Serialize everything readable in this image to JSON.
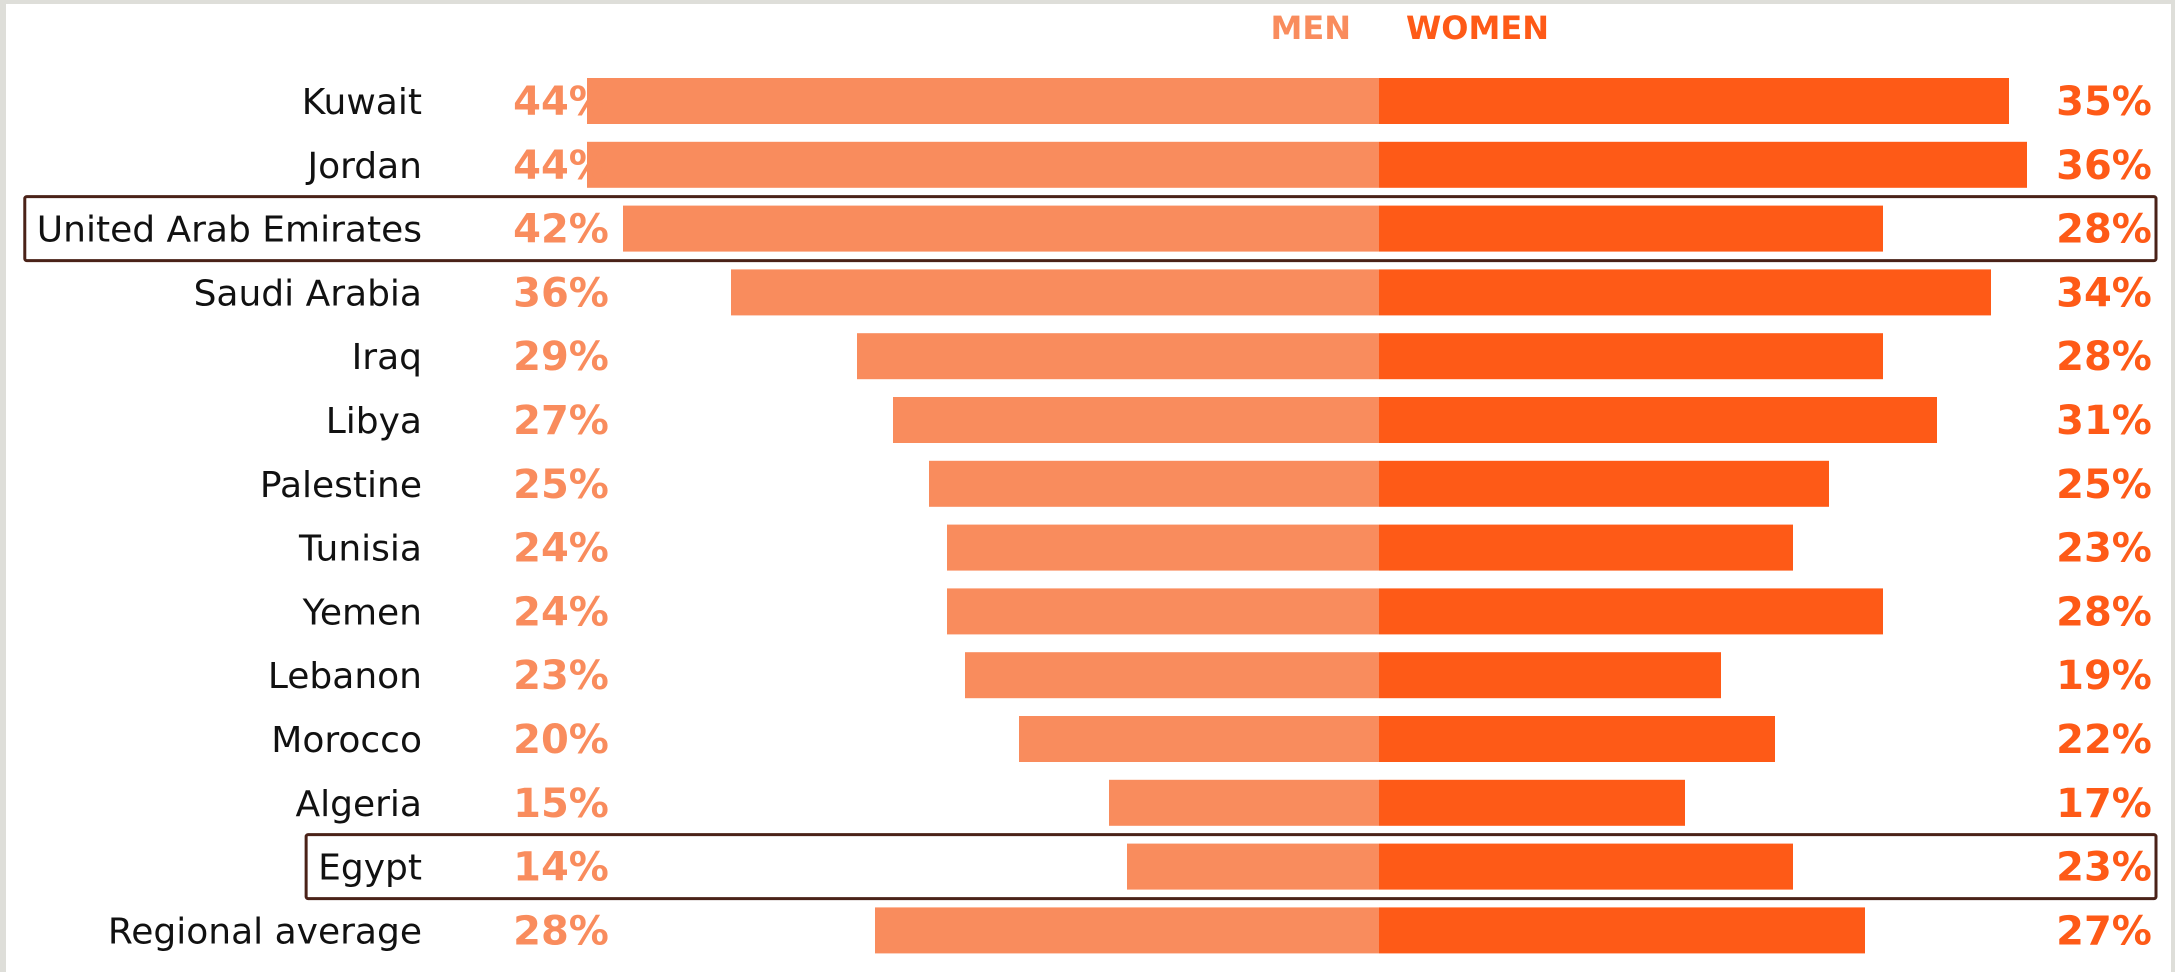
{
  "chart_data": {
    "type": "bar",
    "orientation": "horizontal-diverging",
    "legend": {
      "position": "top-center",
      "men_label": "MEN",
      "women_label": "WOMEN"
    },
    "categories": [
      "Kuwait",
      "Jordan",
      "United Arab Emirates",
      "Saudi Arabia",
      "Iraq",
      "Libya",
      "Palestine",
      "Tunisia",
      "Yemen",
      "Lebanon",
      "Morocco",
      "Algeria",
      "Egypt",
      "Regional average"
    ],
    "series": [
      {
        "name": "MEN",
        "color": "#f98c5d",
        "values": [
          44,
          44,
          42,
          36,
          29,
          27,
          25,
          24,
          24,
          23,
          20,
          15,
          14,
          28
        ],
        "labels": [
          "44%",
          "44%",
          "42%",
          "36%",
          "29%",
          "27%",
          "25%",
          "24%",
          "24%",
          "23%",
          "20%",
          "15%",
          "14%",
          "28%"
        ]
      },
      {
        "name": "WOMEN",
        "color": "#fe5a17",
        "values": [
          35,
          36,
          28,
          34,
          28,
          31,
          25,
          23,
          28,
          19,
          22,
          17,
          23,
          27
        ],
        "labels": [
          "35%",
          "36%",
          "28%",
          "34%",
          "28%",
          "31%",
          "25%",
          "23%",
          "28%",
          "19%",
          "22%",
          "17%",
          "23%",
          "27%"
        ]
      }
    ],
    "highlighted": [
      "United Arab Emirates",
      "Egypt"
    ],
    "highlight_color": "#4a2218",
    "grid": false,
    "unit": "%"
  }
}
